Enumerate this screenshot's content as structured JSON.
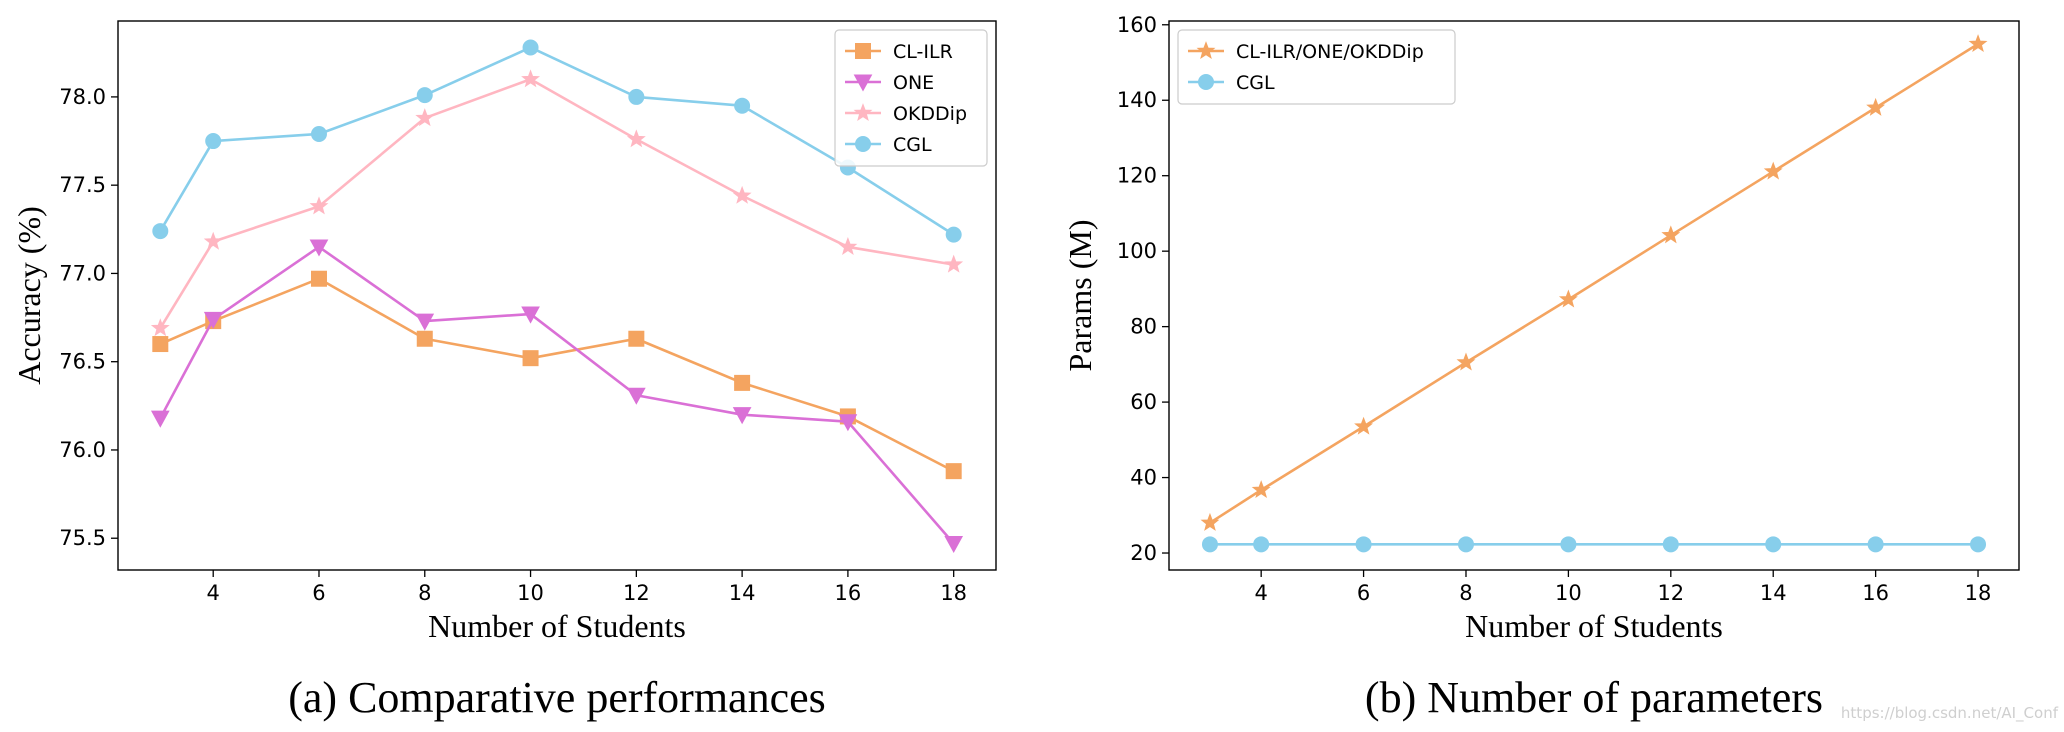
{
  "chart_data": [
    {
      "type": "line",
      "xlabel": "Number of Students",
      "ylabel": "Accuracy (%)",
      "caption": "(a) Comparative performances",
      "x": [
        3,
        4,
        6,
        8,
        10,
        12,
        14,
        16,
        18
      ],
      "xlim": [
        2.2,
        18.8
      ],
      "ylim": [
        75.32,
        78.43
      ],
      "xticks": [
        4,
        6,
        8,
        10,
        12,
        14,
        16,
        18
      ],
      "yticks": [
        75.5,
        76.0,
        76.5,
        77.0,
        77.5,
        78.0
      ],
      "ytick_labels": [
        "75.5",
        "76.0",
        "76.5",
        "77.0",
        "77.5",
        "78.0"
      ],
      "legend_position": "top-right",
      "series": [
        {
          "name": "CL-ILR",
          "color": "#F4A460",
          "marker": "square",
          "values": [
            76.6,
            76.73,
            76.97,
            76.63,
            76.52,
            76.63,
            76.38,
            76.19,
            75.88
          ]
        },
        {
          "name": "ONE",
          "color": "#DA70D6",
          "marker": "triangle-down",
          "values": [
            76.18,
            76.74,
            77.15,
            76.73,
            76.77,
            76.31,
            76.2,
            76.16,
            75.47
          ]
        },
        {
          "name": "OKDDip",
          "color": "#FFB6C1",
          "marker": "star",
          "values": [
            76.69,
            77.18,
            77.38,
            77.88,
            78.1,
            77.76,
            77.44,
            77.15,
            77.05
          ]
        },
        {
          "name": "CGL",
          "color": "#87CEEB",
          "marker": "circle",
          "values": [
            77.24,
            77.75,
            77.79,
            78.01,
            78.28,
            78.0,
            77.95,
            77.6,
            77.22
          ]
        }
      ]
    },
    {
      "type": "line",
      "xlabel": "Number of Students",
      "ylabel": "Params (M)",
      "caption": "(b) Number of parameters",
      "x": [
        3,
        4,
        6,
        8,
        10,
        12,
        14,
        16,
        18
      ],
      "xlim": [
        2.2,
        18.8
      ],
      "ylim": [
        15.5,
        161
      ],
      "xticks": [
        4,
        6,
        8,
        10,
        12,
        14,
        16,
        18
      ],
      "yticks": [
        20,
        40,
        60,
        80,
        100,
        120,
        140,
        160
      ],
      "ytick_labels": [
        "20",
        "40",
        "60",
        "80",
        "100",
        "120",
        "140",
        "160"
      ],
      "legend_position": "top-left",
      "series": [
        {
          "name": "CL-ILR/ONE/OKDDip",
          "color": "#F4A460",
          "marker": "star",
          "values": [
            28,
            36.7,
            53.5,
            70.5,
            87.2,
            104.2,
            121.1,
            138,
            154.9
          ]
        },
        {
          "name": "CGL",
          "color": "#87CEEB",
          "marker": "circle",
          "values": [
            22.3,
            22.3,
            22.3,
            22.3,
            22.3,
            22.3,
            22.3,
            22.3,
            22.3
          ]
        }
      ]
    }
  ],
  "watermark": "https://blog.csdn.net/AI_Conf"
}
